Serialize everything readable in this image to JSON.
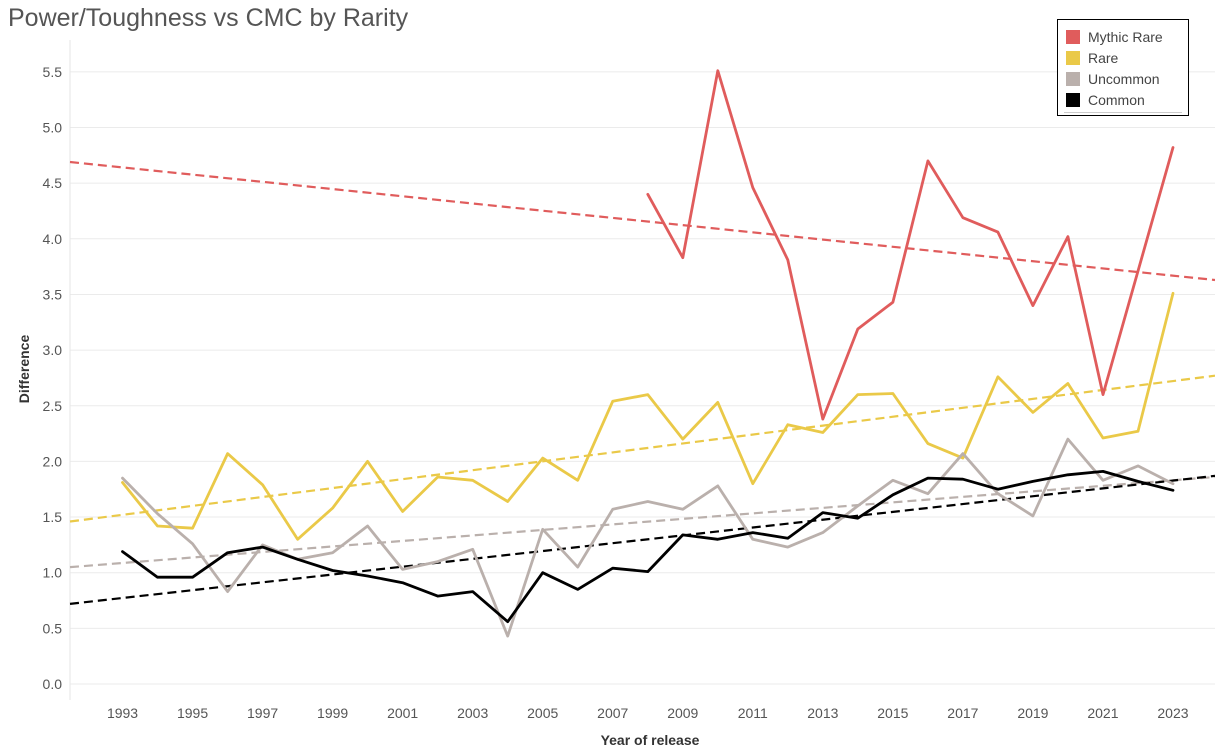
{
  "chart_data": {
    "type": "line",
    "title": "Power/Toughness vs CMC by Rarity",
    "xlabel": "Year of release",
    "ylabel": "Difference",
    "xlim": [
      1991.5,
      2024.2
    ],
    "ylim": [
      0,
      5.7
    ],
    "x_ticks": [
      "1993",
      "1995",
      "1997",
      "1999",
      "2001",
      "2003",
      "2005",
      "2007",
      "2009",
      "2011",
      "2013",
      "2015",
      "2017",
      "2019",
      "2021",
      "2023"
    ],
    "y_ticks": [
      "0.0",
      "0.5",
      "1.0",
      "1.5",
      "2.0",
      "2.5",
      "3.0",
      "3.5",
      "4.0",
      "4.5",
      "5.0",
      "5.5"
    ],
    "grid": "horizontal",
    "legend_position": "top-right",
    "series": [
      {
        "name": "Mythic Rare",
        "color": "#e05c5c",
        "x": [
          2008,
          2009,
          2010,
          2011,
          2012,
          2013,
          2014,
          2015,
          2016,
          2017,
          2018,
          2019,
          2020,
          2021,
          2023
        ],
        "values": [
          4.4,
          3.83,
          5.51,
          4.46,
          3.81,
          2.38,
          3.19,
          3.43,
          4.7,
          4.19,
          4.06,
          3.4,
          4.02,
          2.6,
          4.82
        ],
        "trend": [
          4.69,
          3.63
        ]
      },
      {
        "name": "Rare",
        "color": "#eac948",
        "x": [
          1993,
          1994,
          1995,
          1996,
          1997,
          1998,
          1999,
          2000,
          2001,
          2002,
          2003,
          2004,
          2005,
          2006,
          2007,
          2008,
          2009,
          2010,
          2011,
          2012,
          2013,
          2014,
          2015,
          2016,
          2017,
          2018,
          2019,
          2020,
          2021,
          2022,
          2023
        ],
        "values": [
          1.81,
          1.42,
          1.4,
          2.07,
          1.79,
          1.3,
          1.58,
          2.0,
          1.55,
          1.86,
          1.83,
          1.64,
          2.03,
          1.83,
          2.54,
          2.6,
          2.2,
          2.53,
          1.8,
          2.33,
          2.26,
          2.6,
          2.61,
          2.16,
          2.03,
          2.76,
          2.44,
          2.7,
          2.21,
          2.27,
          3.51
        ],
        "trend": [
          1.46,
          2.77
        ]
      },
      {
        "name": "Uncommon",
        "color": "#bab0ac",
        "x": [
          1993,
          1994,
          1995,
          1996,
          1997,
          1998,
          1999,
          2000,
          2001,
          2002,
          2003,
          2004,
          2005,
          2006,
          2007,
          2008,
          2009,
          2010,
          2011,
          2012,
          2013,
          2014,
          2015,
          2016,
          2017,
          2018,
          2019,
          2020,
          2021,
          2022,
          2023
        ],
        "values": [
          1.85,
          1.53,
          1.26,
          0.83,
          1.25,
          1.12,
          1.18,
          1.42,
          1.03,
          1.1,
          1.21,
          0.43,
          1.39,
          1.05,
          1.57,
          1.64,
          1.57,
          1.78,
          1.3,
          1.23,
          1.36,
          1.6,
          1.83,
          1.71,
          2.07,
          1.71,
          1.51,
          2.2,
          1.83,
          1.96,
          1.8
        ],
        "trend": [
          1.05,
          1.86
        ]
      },
      {
        "name": "Common",
        "color": "#000000",
        "x": [
          1993,
          1994,
          1995,
          1996,
          1997,
          1998,
          1999,
          2000,
          2001,
          2002,
          2003,
          2004,
          2005,
          2006,
          2007,
          2008,
          2009,
          2010,
          2011,
          2012,
          2013,
          2014,
          2015,
          2016,
          2017,
          2018,
          2019,
          2020,
          2021,
          2022,
          2023
        ],
        "values": [
          1.19,
          0.96,
          0.96,
          1.18,
          1.23,
          1.12,
          1.02,
          0.97,
          0.91,
          0.79,
          0.83,
          0.56,
          1.0,
          0.85,
          1.04,
          1.01,
          1.34,
          1.3,
          1.36,
          1.31,
          1.54,
          1.49,
          1.7,
          1.85,
          1.84,
          1.75,
          1.82,
          1.88,
          1.91,
          1.82,
          1.74
        ],
        "trend": [
          0.72,
          1.87
        ]
      }
    ]
  }
}
